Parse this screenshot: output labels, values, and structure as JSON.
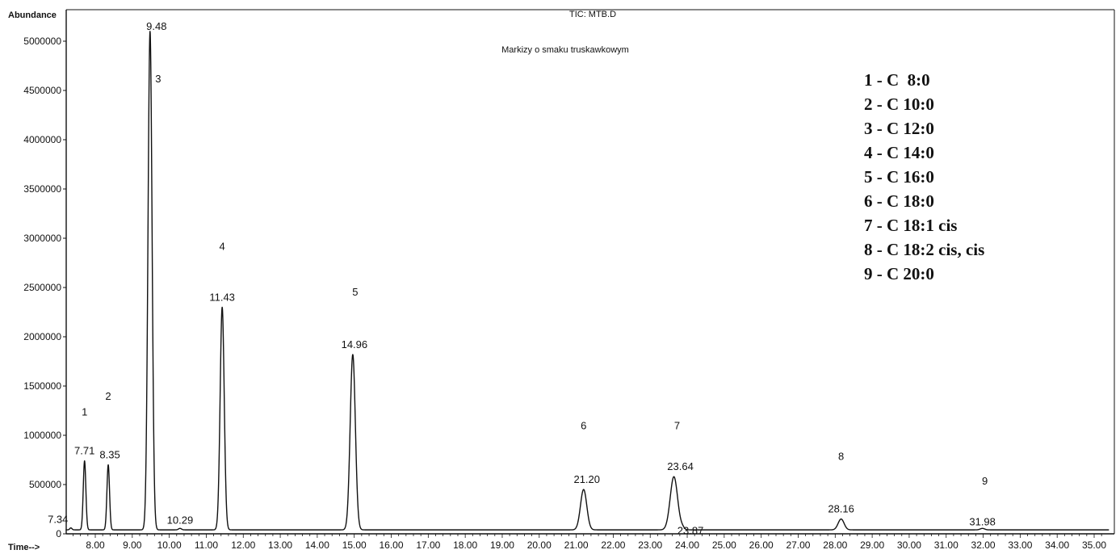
{
  "header": {
    "y_axis_caption": "Abundance",
    "x_axis_caption": "Time-->",
    "file_title": "TIC: MTB.D",
    "subtitle": "Markizy o smaku truskawkowym"
  },
  "chart_data": {
    "type": "line",
    "title": "TIC: MTB.D",
    "subtitle": "Markizy o smaku truskawkowym",
    "xlabel": "Time-->",
    "ylabel": "Abundance",
    "xlim": [
      7.2,
      35.4
    ],
    "ylim": [
      0,
      5200000
    ],
    "x_ticks": [
      "8.00",
      "9.00",
      "10.00",
      "11.00",
      "12.00",
      "13.00",
      "14.00",
      "15.00",
      "16.00",
      "17.00",
      "18.00",
      "19.00",
      "20.00",
      "21.00",
      "22.00",
      "23.00",
      "24.00",
      "25.00",
      "26.00",
      "27.00",
      "28.00",
      "29.00",
      "30.00",
      "31.00",
      "32.00",
      "33.00",
      "34.00",
      "35.00"
    ],
    "y_ticks": [
      "0",
      "500000",
      "1000000",
      "1500000",
      "2000000",
      "2500000",
      "3000000",
      "3500000",
      "4000000",
      "4500000",
      "5000000"
    ],
    "baseline": 40000,
    "peaks": [
      {
        "time": 7.34,
        "label": "7.34",
        "abundance": 60000,
        "width": 0.03,
        "number": ""
      },
      {
        "time": 7.71,
        "label": "7.71",
        "abundance": 740000,
        "width": 0.035,
        "number": "1"
      },
      {
        "time": 8.35,
        "label": "8.35",
        "abundance": 700000,
        "width": 0.035,
        "number": "2"
      },
      {
        "time": 9.48,
        "label": "9.48",
        "abundance": 5100000,
        "width": 0.055,
        "number": "3"
      },
      {
        "time": 10.29,
        "label": "10.29",
        "abundance": 55000,
        "width": 0.04,
        "number": ""
      },
      {
        "time": 11.43,
        "label": "11.43",
        "abundance": 2300000,
        "width": 0.055,
        "number": "4"
      },
      {
        "time": 14.96,
        "label": "14.96",
        "abundance": 1820000,
        "width": 0.07,
        "number": "5"
      },
      {
        "time": 21.2,
        "label": "21.20",
        "abundance": 450000,
        "width": 0.085,
        "number": "6"
      },
      {
        "time": 23.64,
        "label": "23.64",
        "abundance": 580000,
        "width": 0.1,
        "number": "7"
      },
      {
        "time": 23.87,
        "label": "23.87",
        "abundance": 60000,
        "width": 0.05,
        "number": ""
      },
      {
        "time": 28.16,
        "label": "28.16",
        "abundance": 150000,
        "width": 0.08,
        "number": "8"
      },
      {
        "time": 31.98,
        "label": "31.98",
        "abundance": 55000,
        "width": 0.06,
        "number": "9"
      }
    ],
    "legend": [
      "1 - C  8:0",
      "2 - C 10:0",
      "3 - C 12:0",
      "4 - C 14:0",
      "5 - C 16:0",
      "6 - C 18:0",
      "7 - C 18:1 cis",
      "8 - C 18:2 cis, cis",
      "9 - C 20:0"
    ],
    "legend_placement": "top-right",
    "grid": false
  }
}
